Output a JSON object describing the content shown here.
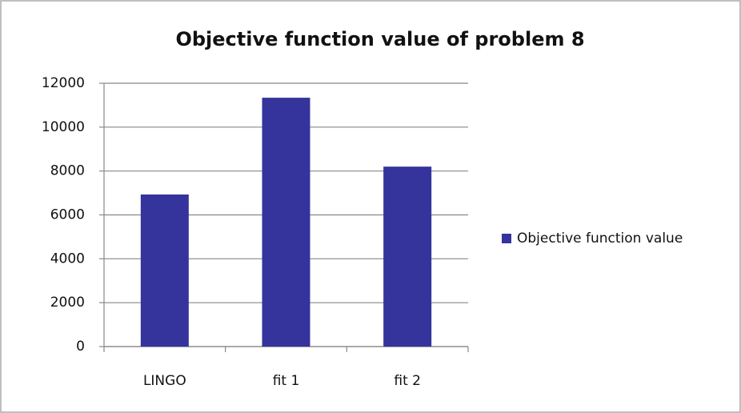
{
  "chart_data": {
    "type": "bar",
    "title": "Objective function value of problem 8",
    "categories": [
      "LINGO",
      "fit 1",
      "fit 2"
    ],
    "series": [
      {
        "name": "Objective function value",
        "color": "#34349c",
        "values": [
          6930,
          11340,
          8200
        ]
      }
    ],
    "ylim": [
      0,
      12000
    ],
    "yticks": [
      0,
      2000,
      4000,
      6000,
      8000,
      10000,
      12000
    ],
    "grid": true,
    "legend": "right"
  }
}
